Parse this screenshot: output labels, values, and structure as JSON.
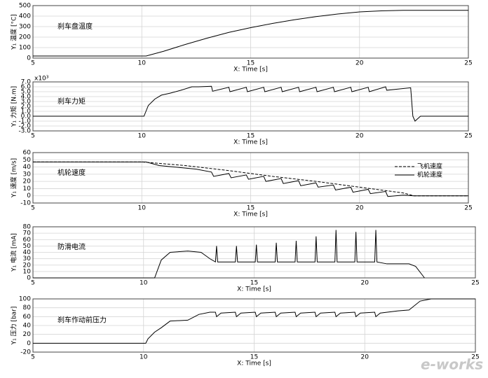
{
  "chart_data": [
    {
      "type": "line",
      "title": "刹车盘温度",
      "xlabel": "X: Time [s]",
      "ylabel": "Y₁ 温度 [°C]",
      "xlim": [
        5,
        25
      ],
      "xticks": [
        5,
        10,
        15,
        20,
        25
      ],
      "ylim": [
        0,
        500
      ],
      "yticks": [
        0,
        100,
        200,
        300,
        400,
        500
      ],
      "grid": true,
      "color": "#000000",
      "x": [
        5,
        10.2,
        11,
        12,
        13,
        14,
        15,
        16,
        17,
        18,
        19,
        20,
        21,
        22,
        23,
        24,
        25
      ],
      "values": [
        20,
        20,
        65,
        130,
        190,
        245,
        290,
        330,
        365,
        395,
        420,
        440,
        450,
        455,
        455,
        455,
        455
      ]
    },
    {
      "type": "line",
      "title": "刹车力矩",
      "xlabel": "X: Time [s]",
      "ylabel": "Y₁ 力矩 [N.m]",
      "axis_multiplier": "x10³",
      "xlim": [
        5,
        25
      ],
      "xticks": [
        5,
        10,
        15,
        20,
        25
      ],
      "ylim": [
        -3,
        7
      ],
      "yticks": [
        {
          "value": 7,
          "label": "7.0"
        },
        {
          "value": 6,
          "label": "6.0"
        },
        {
          "value": 5,
          "label": "5.0"
        },
        {
          "value": 4,
          "label": "4.0"
        },
        {
          "value": 3,
          "label": "3.0"
        },
        {
          "value": 2,
          "label": "2.0"
        },
        {
          "value": 1,
          "label": "1.0"
        },
        {
          "value": 0,
          "label": "0.0"
        },
        {
          "value": -1,
          "label": "-1.0"
        },
        {
          "value": -2,
          "label": "-2.0"
        },
        {
          "value": -3,
          "label": "-3.0"
        }
      ],
      "grid": true,
      "color": "#000000",
      "x": [
        5,
        10.1,
        10.3,
        10.6,
        10.9,
        11.3,
        11.8,
        12.3,
        12.6,
        13.2,
        13.25,
        14.0,
        14.05,
        14.8,
        14.85,
        15.6,
        15.65,
        16.4,
        16.45,
        17.2,
        17.25,
        18.0,
        18.05,
        18.8,
        18.85,
        19.6,
        19.65,
        20.4,
        20.45,
        21.2,
        21.25,
        22.35,
        22.45,
        22.55,
        22.8,
        25
      ],
      "values": [
        0,
        0,
        2.2,
        3.5,
        4.3,
        4.7,
        5.3,
        6.0,
        6.0,
        6.1,
        5.1,
        5.9,
        5.0,
        5.9,
        5.0,
        5.9,
        5.0,
        5.9,
        5.0,
        5.9,
        5.0,
        5.9,
        5.0,
        5.9,
        5.0,
        5.9,
        5.0,
        5.9,
        5.0,
        6.0,
        5.3,
        5.8,
        0,
        -1.0,
        0,
        0
      ]
    },
    {
      "type": "line",
      "title": "机轮速度",
      "xlabel": "X: Time [s]",
      "ylabel": "Y₁ 速度 [m/s]",
      "xlim": [
        5,
        25
      ],
      "xticks": [
        5,
        10,
        15,
        20,
        25
      ],
      "ylim": [
        -10,
        60
      ],
      "yticks": [
        60,
        50,
        40,
        30,
        20,
        10,
        0,
        -10
      ],
      "grid": true,
      "legend": "upper right",
      "series": [
        {
          "name": "飞机速度",
          "color": "#000000",
          "linestyle": "dashed",
          "x": [
            5,
            10,
            12,
            14,
            16,
            18,
            20,
            22,
            22.5,
            25
          ],
          "values": [
            47,
            47,
            42,
            35,
            27,
            20,
            12,
            4,
            0,
            0
          ]
        },
        {
          "name": "机轮速度",
          "color": "#000000",
          "linestyle": "solid",
          "x": [
            5,
            10.2,
            10.8,
            11.5,
            12.5,
            13.2,
            13.3,
            14,
            14.1,
            14.8,
            14.9,
            15.6,
            15.7,
            16.4,
            16.5,
            17.2,
            17.3,
            18,
            18.1,
            18.8,
            18.9,
            19.6,
            19.7,
            20.4,
            20.5,
            21.2,
            21.3,
            22,
            22.5,
            25
          ],
          "values": [
            47,
            47,
            42,
            40,
            37,
            33,
            27,
            31,
            25,
            29,
            23,
            27,
            20,
            24,
            17,
            21,
            14,
            18,
            12,
            15,
            8,
            12,
            5,
            9,
            3,
            6,
            -1,
            1,
            0,
            0
          ]
        }
      ]
    },
    {
      "type": "line",
      "title": "防滑电流",
      "xlabel": "X: Time [s]",
      "ylabel": "Y₁ 电流 [mA]",
      "xlim": [
        5,
        25
      ],
      "xticks": [
        5,
        10,
        15,
        20,
        25
      ],
      "ylim": [
        0,
        80
      ],
      "yticks": [
        80,
        70,
        60,
        50,
        40,
        30,
        20,
        10,
        0
      ],
      "grid": true,
      "color": "#000000",
      "x": [
        5,
        10.5,
        10.8,
        11.2,
        12,
        12.6,
        13,
        13.25,
        13.3,
        13.35,
        14.15,
        14.2,
        14.25,
        15.05,
        15.1,
        15.15,
        15.95,
        16,
        16.05,
        16.85,
        16.9,
        16.95,
        17.75,
        17.8,
        17.85,
        18.65,
        18.7,
        18.75,
        19.55,
        19.6,
        19.65,
        20.45,
        20.5,
        20.55,
        21,
        22,
        22.3,
        22.7
      ],
      "values": [
        0,
        0,
        28,
        40,
        42,
        40,
        30,
        25,
        50,
        25,
        25,
        50,
        25,
        25,
        52,
        25,
        25,
        55,
        25,
        25,
        58,
        25,
        25,
        65,
        25,
        25,
        75,
        25,
        25,
        72,
        25,
        25,
        75,
        25,
        22,
        22,
        18,
        0
      ]
    },
    {
      "type": "line",
      "title": "刹车作动前压力",
      "xlabel": "X: Time [s]",
      "ylabel": "Y₁ 压力 [bar]",
      "xlim": [
        5,
        25
      ],
      "xticks": [
        5,
        10,
        15,
        20,
        25
      ],
      "ylim": [
        -20,
        100
      ],
      "yticks": [
        100,
        80,
        60,
        40,
        20,
        0,
        -20
      ],
      "grid": true,
      "color": "#000000",
      "x": [
        5,
        10.1,
        10.2,
        10.5,
        10.8,
        11.2,
        12,
        12.5,
        13,
        13.25,
        13.3,
        13.5,
        14.15,
        14.2,
        14.4,
        15.05,
        15.1,
        15.3,
        15.95,
        16,
        16.2,
        16.85,
        16.9,
        17.1,
        17.75,
        17.8,
        18,
        18.65,
        18.7,
        18.9,
        19.55,
        19.6,
        19.8,
        20.45,
        20.5,
        20.7,
        21.5,
        22,
        22.5,
        23,
        25
      ],
      "values": [
        0,
        0,
        10,
        25,
        35,
        50,
        52,
        65,
        70,
        70,
        60,
        68,
        70,
        60,
        68,
        70,
        60,
        68,
        70,
        60,
        68,
        70,
        60,
        68,
        70,
        60,
        68,
        70,
        60,
        68,
        70,
        60,
        68,
        70,
        60,
        68,
        73,
        75,
        95,
        100,
        100
      ]
    }
  ],
  "watermark": "e-works"
}
